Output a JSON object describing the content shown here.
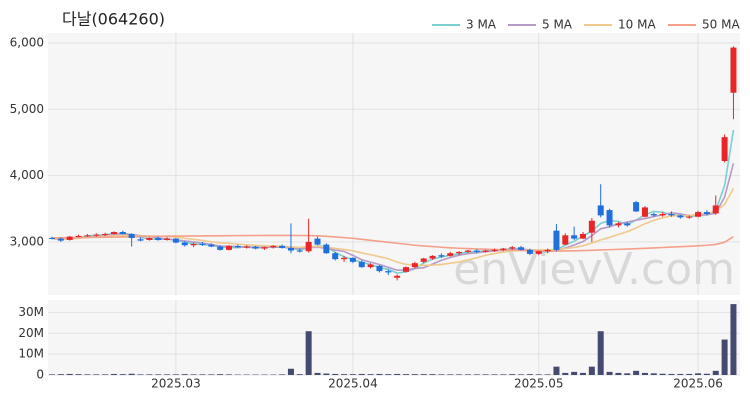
{
  "chart_data": {
    "type": "candlestick",
    "title": "다날(064260)",
    "watermark": "enVievV.com",
    "categories": [
      null,
      null,
      null,
      null,
      null,
      null,
      null,
      null,
      null,
      null,
      null,
      null,
      null,
      null,
      "2025.03",
      null,
      null,
      null,
      null,
      null,
      null,
      null,
      null,
      null,
      null,
      null,
      null,
      null,
      null,
      null,
      null,
      null,
      null,
      null,
      "2025.04",
      null,
      null,
      null,
      null,
      null,
      null,
      null,
      null,
      null,
      null,
      null,
      null,
      null,
      null,
      null,
      null,
      null,
      null,
      null,
      null,
      "2025.05",
      null,
      null,
      null,
      null,
      null,
      null,
      null,
      null,
      null,
      null,
      null,
      null,
      null,
      null,
      null,
      null,
      null,
      "2025.06",
      null,
      null,
      null,
      null
    ],
    "open": [
      3060,
      3050,
      3030,
      3080,
      3090,
      3100,
      3110,
      3120,
      3150,
      3120,
      3040,
      3030,
      3060,
      3030,
      3050,
      2990,
      2950,
      2970,
      2960,
      2930,
      2880,
      2940,
      2920,
      2930,
      2900,
      2920,
      2940,
      2910,
      2870,
      2860,
      3050,
      2960,
      2830,
      2740,
      2760,
      2700,
      2620,
      2640,
      2560,
      2460,
      2550,
      2620,
      2700,
      2750,
      2800,
      2790,
      2830,
      2850,
      2870,
      2850,
      2870,
      2880,
      2900,
      2920,
      2880,
      2820,
      2860,
      3170,
      2960,
      3100,
      3050,
      3140,
      3550,
      3480,
      3250,
      3280,
      3600,
      3380,
      3420,
      3400,
      3420,
      3400,
      3370,
      3380,
      3450,
      3430,
      4220,
      5250
    ],
    "high": [
      3080,
      3070,
      3090,
      3110,
      3120,
      3130,
      3140,
      3160,
      3170,
      3130,
      3070,
      3070,
      3080,
      3070,
      3060,
      3010,
      2990,
      3000,
      2980,
      2950,
      2950,
      2960,
      2950,
      2940,
      2930,
      2950,
      2960,
      3280,
      2900,
      3350,
      3080,
      2980,
      2850,
      2790,
      2770,
      2720,
      2680,
      2650,
      2580,
      2510,
      2630,
      2700,
      2760,
      2800,
      2830,
      2850,
      2860,
      2880,
      2890,
      2880,
      2900,
      2910,
      2940,
      2940,
      2900,
      2870,
      2900,
      3270,
      3130,
      3230,
      3150,
      3360,
      3870,
      3500,
      3300,
      3300,
      3620,
      3540,
      3440,
      3450,
      3460,
      3410,
      3400,
      3470,
      3480,
      3700,
      4620,
      5950
    ],
    "low": [
      3040,
      3000,
      3020,
      3070,
      3080,
      3080,
      3090,
      3110,
      3110,
      2930,
      3010,
      3020,
      3020,
      3020,
      2980,
      2930,
      2920,
      2940,
      2920,
      2870,
      2870,
      2910,
      2900,
      2890,
      2880,
      2900,
      2900,
      2830,
      2840,
      2840,
      2950,
      2820,
      2720,
      2700,
      2680,
      2610,
      2600,
      2540,
      2500,
      2420,
      2540,
      2600,
      2680,
      2730,
      2760,
      2780,
      2800,
      2830,
      2830,
      2840,
      2850,
      2860,
      2880,
      2870,
      2800,
      2800,
      2830,
      2860,
      2950,
      3030,
      3040,
      3000,
      3370,
      3220,
      3220,
      3230,
      3450,
      3370,
      3380,
      3380,
      3380,
      3350,
      3350,
      3370,
      3400,
      3410,
      4200,
      4850
    ],
    "close": [
      3050,
      3020,
      3080,
      3090,
      3100,
      3110,
      3120,
      3150,
      3120,
      3060,
      3020,
      3060,
      3030,
      3050,
      2990,
      2950,
      2970,
      2960,
      2930,
      2880,
      2940,
      2920,
      2930,
      2900,
      2920,
      2940,
      2910,
      2870,
      2860,
      3000,
      2960,
      2830,
      2740,
      2760,
      2700,
      2620,
      2660,
      2560,
      2540,
      2490,
      2620,
      2680,
      2750,
      2790,
      2780,
      2830,
      2850,
      2870,
      2850,
      2870,
      2880,
      2900,
      2920,
      2880,
      2820,
      2860,
      2880,
      2880,
      3100,
      3050,
      3120,
      3320,
      3400,
      3250,
      3280,
      3250,
      3460,
      3520,
      3400,
      3420,
      3400,
      3370,
      3380,
      3450,
      3420,
      3550,
      4580,
      5930
    ],
    "up_color": "#e8262a",
    "down_color": "#1f6fdc",
    "ylim": [
      2200,
      6150
    ],
    "yticks": [
      {
        "value": 3000,
        "label": "3,000"
      },
      {
        "value": 4000,
        "label": "4,000"
      },
      {
        "value": 5000,
        "label": "5,000"
      },
      {
        "value": 6000,
        "label": "6,000"
      }
    ],
    "grid": true,
    "ma": [
      {
        "name": "3 MA",
        "color": "#7ccfcf",
        "values": [
          3050,
          3035,
          3050,
          3063,
          3090,
          3100,
          3110,
          3127,
          3130,
          3110,
          3067,
          3047,
          3037,
          3047,
          3023,
          2997,
          2970,
          2960,
          2953,
          2923,
          2917,
          2913,
          2930,
          2917,
          2917,
          2920,
          2923,
          2907,
          2880,
          2910,
          2940,
          2930,
          2843,
          2777,
          2733,
          2693,
          2660,
          2613,
          2587,
          2530,
          2550,
          2597,
          2683,
          2740,
          2773,
          2800,
          2820,
          2850,
          2857,
          2863,
          2867,
          2883,
          2900,
          2900,
          2873,
          2853,
          2853,
          2873,
          2953,
          3010,
          3090,
          3163,
          3280,
          3323,
          3310,
          3260,
          3330,
          3410,
          3460,
          3447,
          3407,
          3397,
          3383,
          3400,
          3417,
          3473,
          3850,
          4687
        ]
      },
      {
        "name": "5 MA",
        "color": "#b59bc9",
        "values": [
          3050,
          3035,
          3050,
          3060,
          3068,
          3080,
          3100,
          3114,
          3120,
          3112,
          3094,
          3086,
          3058,
          3044,
          3030,
          3016,
          3000,
          2984,
          2960,
          2938,
          2936,
          2926,
          2920,
          2914,
          2918,
          2922,
          2924,
          2908,
          2900,
          2916,
          2920,
          2904,
          2878,
          2858,
          2798,
          2732,
          2696,
          2660,
          2616,
          2574,
          2578,
          2598,
          2612,
          2666,
          2724,
          2766,
          2800,
          2824,
          2836,
          2854,
          2864,
          2874,
          2884,
          2890,
          2880,
          2876,
          2872,
          2864,
          2908,
          2954,
          3006,
          3094,
          3198,
          3228,
          3274,
          3300,
          3328,
          3352,
          3382,
          3410,
          3440,
          3422,
          3398,
          3404,
          3408,
          3434,
          3676,
          4186
        ]
      },
      {
        "name": "10 MA",
        "color": "#f0c98c",
        "values": [
          3050,
          3040,
          3045,
          3055,
          3065,
          3075,
          3085,
          3095,
          3100,
          3090,
          3087,
          3091,
          3086,
          3082,
          3071,
          3055,
          3040,
          3022,
          3003,
          2985,
          2980,
          2966,
          2956,
          2948,
          2941,
          2940,
          2934,
          2925,
          2918,
          2930,
          2932,
          2922,
          2903,
          2888,
          2866,
          2834,
          2809,
          2778,
          2746,
          2695,
          2662,
          2647,
          2648,
          2651,
          2659,
          2680,
          2699,
          2730,
          2761,
          2799,
          2825,
          2847,
          2864,
          2873,
          2876,
          2879,
          2882,
          2883,
          2900,
          2917,
          2941,
          2983,
          3031,
          3068,
          3114,
          3153,
          3211,
          3275,
          3327,
          3364,
          3392,
          3397,
          3396,
          3416,
          3430,
          3460,
          3567,
          3808
        ]
      },
      {
        "name": "50 MA",
        "color": "#f4a08a",
        "values": [
          3060,
          3062,
          3064,
          3066,
          3068,
          3070,
          3072,
          3074,
          3076,
          3078,
          3080,
          3082,
          3084,
          3086,
          3088,
          3089,
          3090,
          3091,
          3092,
          3093,
          3094,
          3095,
          3096,
          3097,
          3098,
          3098,
          3098,
          3098,
          3097,
          3096,
          3092,
          3085,
          3075,
          3065,
          3055,
          3040,
          3025,
          3010,
          2995,
          2980,
          2965,
          2950,
          2940,
          2930,
          2920,
          2912,
          2905,
          2900,
          2895,
          2890,
          2885,
          2880,
          2876,
          2872,
          2868,
          2864,
          2862,
          2862,
          2864,
          2866,
          2870,
          2874,
          2880,
          2884,
          2888,
          2892,
          2898,
          2904,
          2910,
          2916,
          2922,
          2928,
          2934,
          2942,
          2950,
          2962,
          2995,
          3080
        ]
      }
    ],
    "volume": {
      "color": "#454b70",
      "ylim": [
        0,
        35000000
      ],
      "yticks": [
        0,
        {
          "value": 10000000,
          "label": "10M"
        },
        {
          "value": 20000000,
          "label": "20M"
        },
        {
          "value": 30000000,
          "label": "30M"
        }
      ],
      "values": [
        300000,
        400000,
        500000,
        400000,
        300000,
        300000,
        300000,
        500000,
        400000,
        600000,
        300000,
        300000,
        300000,
        300000,
        300000,
        400000,
        300000,
        300000,
        300000,
        400000,
        300000,
        200000,
        200000,
        200000,
        200000,
        200000,
        300000,
        3000000,
        400000,
        21000000,
        1000000,
        700000,
        500000,
        400000,
        400000,
        500000,
        400000,
        500000,
        400000,
        500000,
        400000,
        400000,
        400000,
        400000,
        300000,
        300000,
        300000,
        300000,
        300000,
        300000,
        300000,
        300000,
        400000,
        300000,
        400000,
        300000,
        300000,
        4000000,
        1000000,
        1500000,
        1000000,
        4000000,
        21000000,
        1500000,
        1000000,
        800000,
        2000000,
        1000000,
        800000,
        600000,
        500000,
        500000,
        500000,
        800000,
        600000,
        2000000,
        17000000,
        34000000
      ]
    }
  }
}
